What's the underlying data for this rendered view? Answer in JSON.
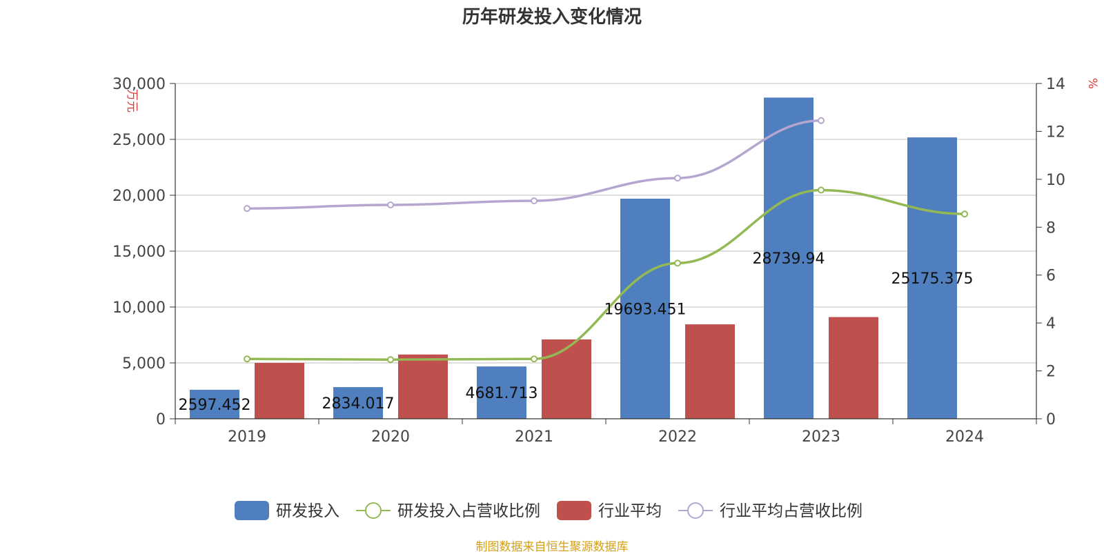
{
  "chart_data": {
    "type": "bar",
    "title": "历年研发投入变化情况",
    "categories": [
      "2019",
      "2020",
      "2021",
      "2022",
      "2023",
      "2024"
    ],
    "y_left": {
      "label": "万元",
      "min": 0,
      "max": 30000,
      "ticks": [
        "0",
        "5,000",
        "10,000",
        "15,000",
        "20,000",
        "25,000",
        "30,000"
      ]
    },
    "y_right": {
      "label": "%",
      "min": 0,
      "max": 14,
      "ticks": [
        "0",
        "2",
        "4",
        "6",
        "8",
        "10",
        "12",
        "14"
      ]
    },
    "series": [
      {
        "name": "研发投入",
        "kind": "bar",
        "axis": "left",
        "color": "#4f7fbf",
        "values": [
          2597.452,
          2834.017,
          4681.713,
          19693.451,
          28739.94,
          25175.375
        ],
        "labels": [
          "2597.452",
          "2834.017",
          "4681.713",
          "19693.451",
          "28739.94",
          "25175.375"
        ]
      },
      {
        "name": "研发投入占营收比例",
        "kind": "line",
        "axis": "right",
        "color": "#93b955",
        "values": [
          2.5,
          2.47,
          2.5,
          6.5,
          9.55,
          8.55
        ]
      },
      {
        "name": "行业平均",
        "kind": "bar",
        "axis": "left",
        "color": "#c0504d",
        "values": [
          5000,
          5750,
          7100,
          8450,
          9100,
          null
        ]
      },
      {
        "name": "行业平均占营收比例",
        "kind": "line",
        "axis": "right",
        "color": "#b5a6cf",
        "values": [
          8.78,
          8.93,
          9.1,
          10.05,
          12.45,
          null
        ]
      }
    ],
    "legend_position": "bottom",
    "grid": true
  },
  "source_note": "制图数据来自恒生聚源数据库",
  "source_note_color": "#d4a017"
}
